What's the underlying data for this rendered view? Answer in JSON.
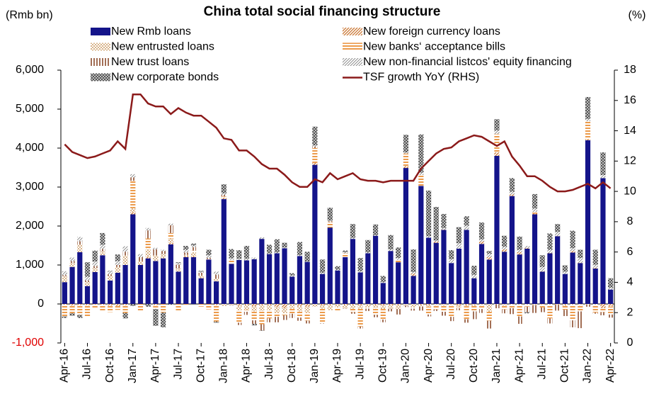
{
  "chart_data": {
    "type": "bar",
    "title": "China total social financing structure",
    "y_label": "(Rmb bn)",
    "y2_label": "(%)",
    "categories": [
      "Apr-16",
      null,
      null,
      "Jul-16",
      null,
      null,
      "Oct-16",
      null,
      null,
      "Jan-17",
      null,
      null,
      "Apr-17",
      null,
      null,
      "Jul-17",
      null,
      null,
      "Oct-17",
      null,
      null,
      "Jan-18",
      null,
      null,
      "Apr-18",
      null,
      null,
      "Jul-18",
      null,
      null,
      "Oct-18",
      null,
      null,
      "Jan-19",
      null,
      null,
      "Apr-19",
      null,
      null,
      "Jul-19",
      null,
      null,
      "Oct-19",
      null,
      null,
      "Jan-20",
      null,
      null,
      "Apr-20",
      null,
      null,
      "Jul-20",
      null,
      null,
      "Oct-20",
      null,
      null,
      "Jan-21",
      null,
      null,
      "Apr-21",
      null,
      null,
      "Jul-21",
      null,
      null,
      "Oct-21",
      null,
      null,
      "Jan-22",
      null,
      null,
      "Apr-22"
    ],
    "ylim": [
      -1000,
      6000
    ],
    "yticks": [
      {
        "value": -1000,
        "label": "-1,000"
      },
      0,
      {
        "value": 1000,
        "label": "1,000"
      },
      {
        "value": 2000,
        "label": "2,000"
      },
      {
        "value": 3000,
        "label": "3,000"
      },
      {
        "value": 4000,
        "label": "4,000"
      },
      {
        "value": 5000,
        "label": "5,000"
      },
      {
        "value": 6000,
        "label": "6,000"
      }
    ],
    "y2lim": [
      0,
      18
    ],
    "y2ticks": [
      0,
      2,
      4,
      6,
      8,
      10,
      12,
      14,
      16,
      18
    ],
    "series": [
      {
        "name": "New Rmb loans",
        "color": "#14148a",
        "values": [
          560,
          950,
          1330,
          460,
          820,
          1250,
          600,
          800,
          1000,
          2300,
          1000,
          1170,
          1100,
          1170,
          1530,
          830,
          1200,
          1200,
          660,
          1140,
          580,
          2690,
          1030,
          1130,
          1120,
          1150,
          1670,
          1280,
          1300,
          1430,
          700,
          1230,
          1080,
          3570,
          770,
          1960,
          860,
          1200,
          1670,
          810,
          1300,
          1750,
          540,
          1360,
          1070,
          3490,
          720,
          3030,
          1700,
          1570,
          1900,
          1050,
          1420,
          1900,
          660,
          1540,
          1140,
          3800,
          1340,
          2770,
          1270,
          1420,
          2300,
          830,
          1300,
          1740,
          770,
          1320,
          1050,
          4200,
          910,
          3230,
          370
        ]
      },
      {
        "name": "New foreign currency loans",
        "color": "#c8702a",
        "values": [
          -20,
          -40,
          -30,
          -30,
          -10,
          -20,
          -40,
          -50,
          -30,
          60,
          0,
          40,
          -30,
          10,
          40,
          0,
          20,
          30,
          20,
          0,
          -30,
          40,
          -10,
          -50,
          -20,
          -60,
          -30,
          -30,
          -80,
          -110,
          -10,
          -50,
          -70,
          50,
          -40,
          -30,
          -10,
          -20,
          -20,
          -40,
          -10,
          -30,
          -40,
          -30,
          -30,
          50,
          60,
          -20,
          -30,
          30,
          10,
          0,
          -40,
          -30,
          -10,
          60,
          60,
          90,
          60,
          40,
          60,
          20,
          20,
          10,
          10,
          10,
          -20,
          40,
          10,
          30,
          20,
          -100,
          -50
        ]
      },
      {
        "name": "New entrusted loans",
        "color": "#d9b48a",
        "values": [
          150,
          100,
          200,
          100,
          100,
          100,
          120,
          150,
          250,
          100,
          100,
          200,
          150,
          100,
          110,
          80,
          40,
          100,
          50,
          10,
          70,
          -50,
          -20,
          -120,
          -130,
          -130,
          -150,
          -140,
          -150,
          -130,
          -110,
          -140,
          -160,
          -70,
          -80,
          -130,
          -80,
          -90,
          -100,
          -80,
          -80,
          -70,
          -90,
          -90,
          -100,
          -40,
          -90,
          -50,
          -40,
          -30,
          -40,
          -30,
          -40,
          -30,
          -40,
          -30,
          -200,
          -10,
          -40,
          -20,
          -20,
          -20,
          -30,
          -10,
          -20,
          -10,
          -30,
          -20,
          -30,
          -20,
          -20,
          -10,
          -20
        ]
      },
      {
        "name": "New banks‘ acceptance bills",
        "color": "#e8821e",
        "values": [
          -300,
          -200,
          -250,
          -300,
          -100,
          -150,
          -170,
          -100,
          -200,
          700,
          -180,
          270,
          -100,
          -220,
          140,
          -200,
          -30,
          40,
          -70,
          -140,
          -420,
          30,
          100,
          -310,
          -50,
          -230,
          -340,
          -200,
          -100,
          -50,
          -130,
          -160,
          -200,
          380,
          -370,
          140,
          -100,
          100,
          -90,
          -460,
          -30,
          -180,
          -270,
          0,
          60,
          320,
          -30,
          280,
          -200,
          -110,
          -160,
          -300,
          -30,
          -330,
          -140,
          -100,
          -230,
          470,
          -100,
          -90,
          -300,
          -50,
          40,
          -80,
          -350,
          -10,
          -100,
          -400,
          -160,
          460,
          -200,
          -100,
          -200
        ]
      },
      {
        "name": "New trust loans",
        "color": "#8b4a2a",
        "values": [
          30,
          50,
          80,
          40,
          50,
          60,
          40,
          50,
          90,
          90,
          100,
          210,
          150,
          80,
          200,
          100,
          60,
          90,
          70,
          30,
          100,
          40,
          -10,
          -60,
          -80,
          -90,
          -160,
          -100,
          -140,
          -120,
          -110,
          -80,
          -70,
          40,
          -10,
          20,
          0,
          -10,
          -40,
          -50,
          -60,
          -60,
          -70,
          -70,
          -140,
          -40,
          -50,
          -100,
          -50,
          -40,
          -100,
          -110,
          -50,
          -90,
          -200,
          -100,
          -200,
          -100,
          -100,
          -150,
          -190,
          -140,
          -200,
          -120,
          -130,
          -150,
          -160,
          -180,
          -430,
          -50,
          -30,
          -80,
          -80
        ]
      },
      {
        "name": "New non-financial listcos' equity financing",
        "color": "#808080",
        "values": [
          100,
          90,
          110,
          100,
          120,
          110,
          80,
          100,
          140,
          80,
          80,
          60,
          40,
          30,
          40,
          40,
          70,
          40,
          30,
          70,
          80,
          40,
          40,
          30,
          40,
          40,
          40,
          20,
          20,
          20,
          30,
          20,
          10,
          30,
          30,
          20,
          20,
          30,
          30,
          30,
          20,
          10,
          20,
          40,
          50,
          30,
          40,
          60,
          40,
          30,
          40,
          100,
          140,
          110,
          90,
          60,
          90,
          90,
          70,
          70,
          60,
          50,
          90,
          110,
          80,
          100,
          60,
          70,
          120,
          60,
          80,
          80,
          50
        ]
      },
      {
        "name": "New corporate bonds",
        "color": "#505050",
        "values": [
          -40,
          -60,
          -80,
          370,
          280,
          300,
          10,
          170,
          -140,
          -50,
          0,
          -70,
          -430,
          -380,
          -20,
          20,
          100,
          50,
          20,
          140,
          -30,
          230,
          240,
          220,
          330,
          -40,
          -10,
          220,
          340,
          120,
          60,
          340,
          250,
          480,
          340,
          330,
          90,
          40,
          350,
          340,
          320,
          280,
          160,
          370,
          270,
          450,
          580,
          980,
          1170,
          860,
          360,
          230,
          410,
          240,
          230,
          430,
          70,
          290,
          280,
          350,
          340,
          -30,
          370,
          300,
          420,
          200,
          160,
          450,
          210,
          560,
          380,
          580,
          240
        ]
      },
      {
        "name": "TSF growth YoY (RHS)",
        "color": "#8b1a1a",
        "type": "line",
        "axis": "y2",
        "values": [
          13.1,
          12.6,
          12.4,
          12.2,
          12.3,
          12.5,
          12.7,
          13.3,
          12.8,
          16.4,
          16.4,
          15.8,
          15.6,
          15.6,
          15.1,
          15.5,
          15.2,
          15.0,
          15.0,
          14.6,
          14.2,
          13.5,
          13.4,
          12.7,
          12.7,
          12.3,
          11.8,
          11.5,
          11.5,
          11.1,
          10.6,
          10.3,
          10.3,
          10.8,
          10.6,
          11.2,
          10.8,
          11.0,
          11.2,
          10.8,
          10.7,
          10.7,
          10.6,
          10.7,
          10.7,
          10.7,
          10.7,
          11.5,
          12.0,
          12.5,
          12.8,
          12.9,
          13.3,
          13.5,
          13.7,
          13.6,
          13.3,
          13.0,
          13.3,
          12.3,
          11.7,
          11.0,
          11.0,
          10.7,
          10.3,
          10.0,
          10.0,
          10.1,
          10.3,
          10.5,
          10.2,
          10.6,
          10.2
        ]
      }
    ]
  }
}
